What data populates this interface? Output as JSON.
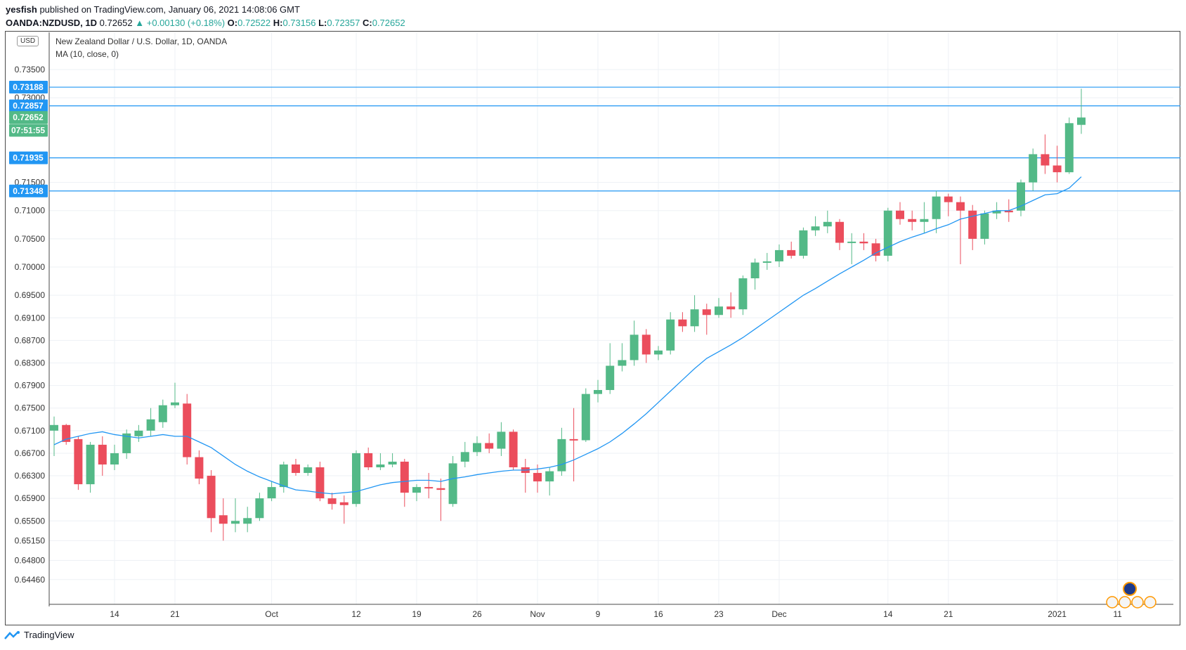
{
  "header": {
    "author": "yesfish",
    "published": "published on TradingView.com, January 06, 2021 14:08:06 GMT",
    "symbol": "OANDA:NZDUSD, 1D",
    "last": "0.72652",
    "change": "▲ +0.00130 (+0.18%)",
    "o_label": "O:",
    "o": "0.72522",
    "h_label": "H:",
    "h": "0.73156",
    "l_label": "L:",
    "l": "0.72357",
    "c_label": "C:",
    "c": "0.72652"
  },
  "legend": {
    "title": "New Zealand Dollar / U.S. Dollar, 1D, OANDA",
    "ma": "MA (10, close, 0)",
    "currency": "USD"
  },
  "footer": {
    "brand": "TradingView"
  },
  "colors": {
    "up": "#26a69a",
    "up_body": "#53b987",
    "down": "#eb4d5c",
    "ma": "#2196f3",
    "hline": "#2196f3"
  },
  "chart_data": {
    "type": "candlestick",
    "title": "New Zealand Dollar / U.S. Dollar, 1D, OANDA",
    "indicator": "MA (10, close, 0)",
    "price_ticks": [
      "0.73500",
      "0.73000",
      "0.71500",
      "0.71000",
      "0.70500",
      "0.70000",
      "0.69500",
      "0.69100",
      "0.68700",
      "0.68300",
      "0.67900",
      "0.67500",
      "0.67100",
      "0.66700",
      "0.66300",
      "0.65900",
      "0.65500",
      "0.65150",
      "0.64800",
      "0.64460"
    ],
    "x_ticks": [
      {
        "label": "14",
        "index": 5
      },
      {
        "label": "21",
        "index": 10
      },
      {
        "label": "Oct",
        "index": 18
      },
      {
        "label": "12",
        "index": 25
      },
      {
        "label": "19",
        "index": 30
      },
      {
        "label": "26",
        "index": 35
      },
      {
        "label": "Nov",
        "index": 40
      },
      {
        "label": "9",
        "index": 45
      },
      {
        "label": "16",
        "index": 50
      },
      {
        "label": "23",
        "index": 55
      },
      {
        "label": "Dec",
        "index": 60
      },
      {
        "label": "14",
        "index": 69
      },
      {
        "label": "21",
        "index": 74
      },
      {
        "label": "2021",
        "index": 83
      },
      {
        "label": "11",
        "index": 88
      }
    ],
    "horizontal_lines": [
      "0.73188",
      "0.72857",
      "0.71935",
      "0.71348"
    ],
    "price_labels": [
      {
        "text": "0.73188",
        "price": 0.73188,
        "color": "#2196f3"
      },
      {
        "text": "0.72857",
        "price": 0.72857,
        "color": "#2196f3"
      },
      {
        "text": "0.72652",
        "price": 0.72652,
        "color": "#53b987"
      },
      {
        "text": "07:51:55",
        "price": 0.72422,
        "color": "#53b987"
      },
      {
        "text": "0.71935",
        "price": 0.71935,
        "color": "#2196f3"
      },
      {
        "text": "0.71348",
        "price": 0.71348,
        "color": "#2196f3"
      }
    ],
    "candles": [
      [
        0.671,
        0.672,
        0.6735,
        0.6665
      ],
      [
        0.672,
        0.669,
        0.6722,
        0.6685
      ],
      [
        0.6695,
        0.6615,
        0.67,
        0.6605
      ],
      [
        0.6615,
        0.6685,
        0.669,
        0.66
      ],
      [
        0.6685,
        0.665,
        0.67,
        0.663
      ],
      [
        0.665,
        0.667,
        0.6685,
        0.664
      ],
      [
        0.667,
        0.6705,
        0.6712,
        0.666
      ],
      [
        0.67,
        0.671,
        0.672,
        0.669
      ],
      [
        0.671,
        0.673,
        0.675,
        0.67
      ],
      [
        0.6725,
        0.6755,
        0.6765,
        0.6715
      ],
      [
        0.6755,
        0.676,
        0.6795,
        0.675
      ],
      [
        0.6758,
        0.6663,
        0.6775,
        0.665
      ],
      [
        0.6663,
        0.6625,
        0.6675,
        0.6615
      ],
      [
        0.663,
        0.6555,
        0.664,
        0.653
      ],
      [
        0.656,
        0.6545,
        0.659,
        0.6515
      ],
      [
        0.6545,
        0.655,
        0.659,
        0.653
      ],
      [
        0.6545,
        0.6555,
        0.6575,
        0.653
      ],
      [
        0.6555,
        0.659,
        0.66,
        0.655
      ],
      [
        0.659,
        0.661,
        0.662,
        0.6585
      ],
      [
        0.661,
        0.665,
        0.6655,
        0.66
      ],
      [
        0.665,
        0.6635,
        0.666,
        0.663
      ],
      [
        0.6635,
        0.6645,
        0.665,
        0.663
      ],
      [
        0.6645,
        0.659,
        0.6655,
        0.6585
      ],
      [
        0.659,
        0.658,
        0.66,
        0.657
      ],
      [
        0.6583,
        0.6578,
        0.6595,
        0.6545
      ],
      [
        0.658,
        0.667,
        0.6675,
        0.6575
      ],
      [
        0.667,
        0.6645,
        0.668,
        0.664
      ],
      [
        0.6645,
        0.665,
        0.667,
        0.664
      ],
      [
        0.665,
        0.6655,
        0.667,
        0.6645
      ],
      [
        0.6655,
        0.66,
        0.666,
        0.6575
      ],
      [
        0.66,
        0.661,
        0.6615,
        0.6585
      ],
      [
        0.661,
        0.6608,
        0.6635,
        0.659
      ],
      [
        0.6608,
        0.6605,
        0.6625,
        0.655
      ],
      [
        0.658,
        0.6652,
        0.6665,
        0.6575
      ],
      [
        0.6655,
        0.6672,
        0.669,
        0.6645
      ],
      [
        0.6672,
        0.6688,
        0.67,
        0.6665
      ],
      [
        0.6688,
        0.6678,
        0.6705,
        0.667
      ],
      [
        0.6678,
        0.6708,
        0.6725,
        0.6665
      ],
      [
        0.6708,
        0.6645,
        0.6712,
        0.664
      ],
      [
        0.6645,
        0.6635,
        0.666,
        0.66
      ],
      [
        0.6635,
        0.662,
        0.665,
        0.66
      ],
      [
        0.662,
        0.6638,
        0.6645,
        0.6595
      ],
      [
        0.6638,
        0.6695,
        0.6715,
        0.663
      ],
      [
        0.6695,
        0.6693,
        0.675,
        0.662
      ],
      [
        0.6693,
        0.6775,
        0.6785,
        0.669
      ],
      [
        0.6775,
        0.6782,
        0.68,
        0.676
      ],
      [
        0.6782,
        0.6825,
        0.6865,
        0.6775
      ],
      [
        0.6825,
        0.6835,
        0.6865,
        0.6815
      ],
      [
        0.6835,
        0.688,
        0.6905,
        0.6825
      ],
      [
        0.688,
        0.6845,
        0.689,
        0.683
      ],
      [
        0.6845,
        0.6852,
        0.686,
        0.6835
      ],
      [
        0.6852,
        0.6907,
        0.692,
        0.6845
      ],
      [
        0.6907,
        0.6895,
        0.692,
        0.6885
      ],
      [
        0.6895,
        0.6925,
        0.695,
        0.6885
      ],
      [
        0.6925,
        0.6915,
        0.6935,
        0.688
      ],
      [
        0.6915,
        0.693,
        0.6945,
        0.691
      ],
      [
        0.693,
        0.6925,
        0.6955,
        0.691
      ],
      [
        0.6925,
        0.698,
        0.6985,
        0.6915
      ],
      [
        0.698,
        0.7008,
        0.7015,
        0.696
      ],
      [
        0.7008,
        0.701,
        0.7025,
        0.6995
      ],
      [
        0.701,
        0.703,
        0.704,
        0.7
      ],
      [
        0.703,
        0.702,
        0.7045,
        0.7015
      ],
      [
        0.702,
        0.7065,
        0.707,
        0.7015
      ],
      [
        0.7065,
        0.7072,
        0.709,
        0.7055
      ],
      [
        0.7072,
        0.708,
        0.71,
        0.706
      ],
      [
        0.708,
        0.7043,
        0.7085,
        0.703
      ],
      [
        0.7043,
        0.7045,
        0.706,
        0.7005
      ],
      [
        0.7045,
        0.7042,
        0.706,
        0.703
      ],
      [
        0.7042,
        0.702,
        0.705,
        0.701
      ],
      [
        0.702,
        0.71,
        0.7105,
        0.701
      ],
      [
        0.71,
        0.7085,
        0.7115,
        0.7075
      ],
      [
        0.7085,
        0.708,
        0.71,
        0.7065
      ],
      [
        0.708,
        0.7085,
        0.7115,
        0.706
      ],
      [
        0.7085,
        0.7125,
        0.7135,
        0.706
      ],
      [
        0.7125,
        0.7115,
        0.713,
        0.709
      ],
      [
        0.7115,
        0.71,
        0.7125,
        0.7005
      ],
      [
        0.71,
        0.705,
        0.711,
        0.703
      ],
      [
        0.705,
        0.7095,
        0.71,
        0.704
      ],
      [
        0.7095,
        0.71,
        0.7115,
        0.7085
      ],
      [
        0.71,
        0.7097,
        0.712,
        0.708
      ],
      [
        0.71,
        0.715,
        0.7155,
        0.709
      ],
      [
        0.715,
        0.72,
        0.721,
        0.7135
      ],
      [
        0.72,
        0.718,
        0.7235,
        0.7165
      ],
      [
        0.718,
        0.7168,
        0.7215,
        0.715
      ],
      [
        0.7168,
        0.7255,
        0.7265,
        0.7165
      ],
      [
        0.7252,
        0.7265,
        0.7316,
        0.7236
      ]
    ],
    "ma_values": [
      0.6685,
      0.6695,
      0.67,
      0.6705,
      0.6708,
      0.6703,
      0.67,
      0.6697,
      0.67,
      0.6703,
      0.67,
      0.67,
      0.669,
      0.668,
      0.6665,
      0.665,
      0.6638,
      0.6628,
      0.662,
      0.6612,
      0.6605,
      0.6603,
      0.66,
      0.6598,
      0.66,
      0.6602,
      0.6608,
      0.6614,
      0.6618,
      0.662,
      0.6622,
      0.6622,
      0.662,
      0.6625,
      0.6628,
      0.6632,
      0.6635,
      0.6638,
      0.664,
      0.664,
      0.6642,
      0.6645,
      0.665,
      0.6658,
      0.6668,
      0.6678,
      0.669,
      0.6705,
      0.6722,
      0.674,
      0.676,
      0.678,
      0.68,
      0.682,
      0.6838,
      0.685,
      0.6862,
      0.6875,
      0.689,
      0.6905,
      0.692,
      0.6935,
      0.695,
      0.6962,
      0.6975,
      0.6988,
      0.7,
      0.7012,
      0.7025,
      0.7035,
      0.7045,
      0.7053,
      0.706,
      0.7068,
      0.7075,
      0.7085,
      0.709,
      0.7095,
      0.71,
      0.71,
      0.7108,
      0.7118,
      0.7128,
      0.713,
      0.714,
      0.716
    ]
  }
}
